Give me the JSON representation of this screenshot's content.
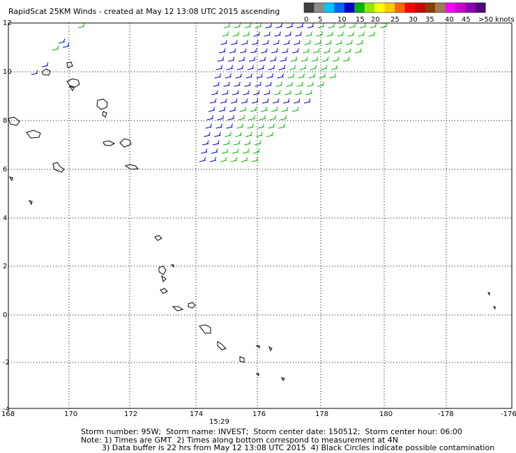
{
  "title": "RapidScat 25KM Winds - created at May 12 13:08 UTC 2015 ascending",
  "colorbar": {
    "labels": [
      "0",
      "5",
      "10",
      "15",
      "20",
      "25",
      "30",
      "35",
      "40",
      "45",
      ">50 knots"
    ],
    "colors": [
      "#404040",
      "#8c8c8c",
      "#00c8ff",
      "#0064ff",
      "#0000c8",
      "#00b400",
      "#96e600",
      "#ffff00",
      "#ffc800",
      "#ff6400",
      "#ff0000",
      "#c80000",
      "#8c3c00",
      "#a0785a",
      "#ff00ff",
      "#c800c8",
      "#8c00b4",
      "#500078"
    ]
  },
  "axes": {
    "x_ticks": [
      "168",
      "170",
      "172",
      "174",
      "176",
      "178",
      "180",
      "-178",
      "-176"
    ],
    "y_ticks": [
      "12",
      "10",
      "8",
      "6",
      "4",
      "2",
      "0",
      "-2",
      "-4"
    ]
  },
  "time_label": "15:29",
  "time_label_color": "#800080",
  "barb_colors": {
    "blue": "#0000c8",
    "green": "#00b400"
  },
  "footer": {
    "line1": "Storm number: 95W;  Storm name: INVEST;  Storm center date: 150512;  Storm center hour: 06:00",
    "line2": "Note: 1) Times are GMT  2) Times along bottom correspond to measurement at 4N",
    "line3": "3) Data buffer is 22 hrs from May 12 13:08 UTC 2015  4) Black Circles indicate possible contamination"
  }
}
